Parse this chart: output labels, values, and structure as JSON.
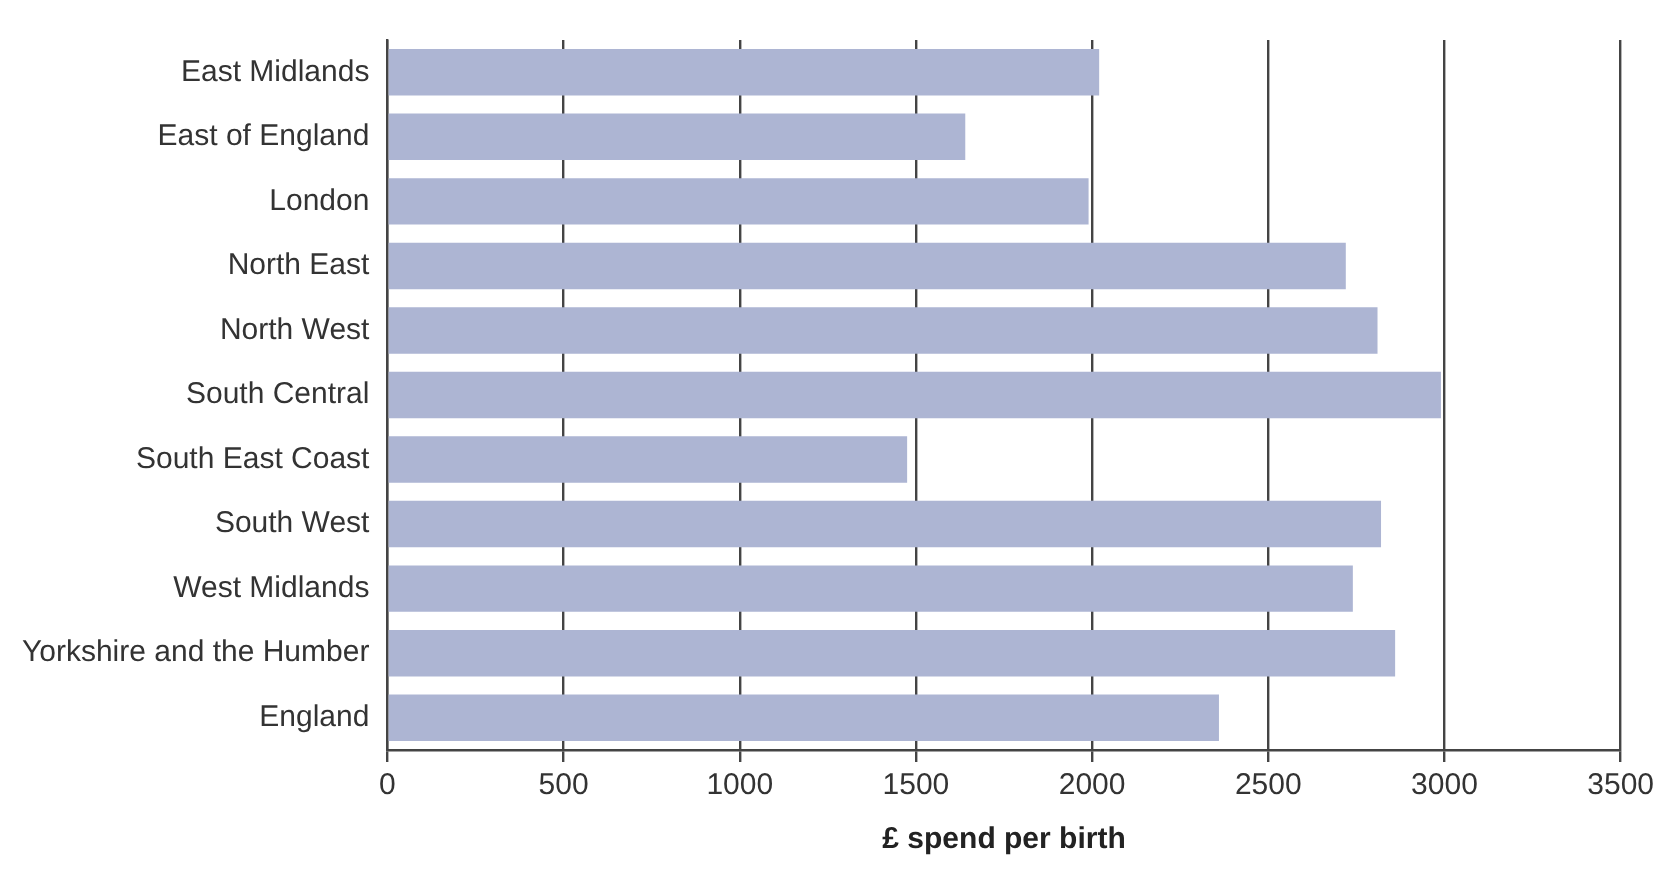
{
  "chart_data": {
    "type": "bar",
    "orientation": "horizontal",
    "xlabel": "£ spend per birth",
    "categories": [
      "East Midlands",
      "East of England",
      "London",
      "North East",
      "North West",
      "South Central",
      "South East Coast",
      "South West",
      "West Midlands",
      "Yorkshire and the Humber",
      "England"
    ],
    "values": [
      2020,
      1640,
      1990,
      2720,
      2810,
      2990,
      1475,
      2820,
      2740,
      2860,
      2360
    ],
    "color": "#adb5d3",
    "xlim": [
      0,
      3500
    ],
    "xticks": [
      0,
      500,
      1000,
      1500,
      2000,
      2500,
      3000,
      3500
    ],
    "grid": "x"
  }
}
